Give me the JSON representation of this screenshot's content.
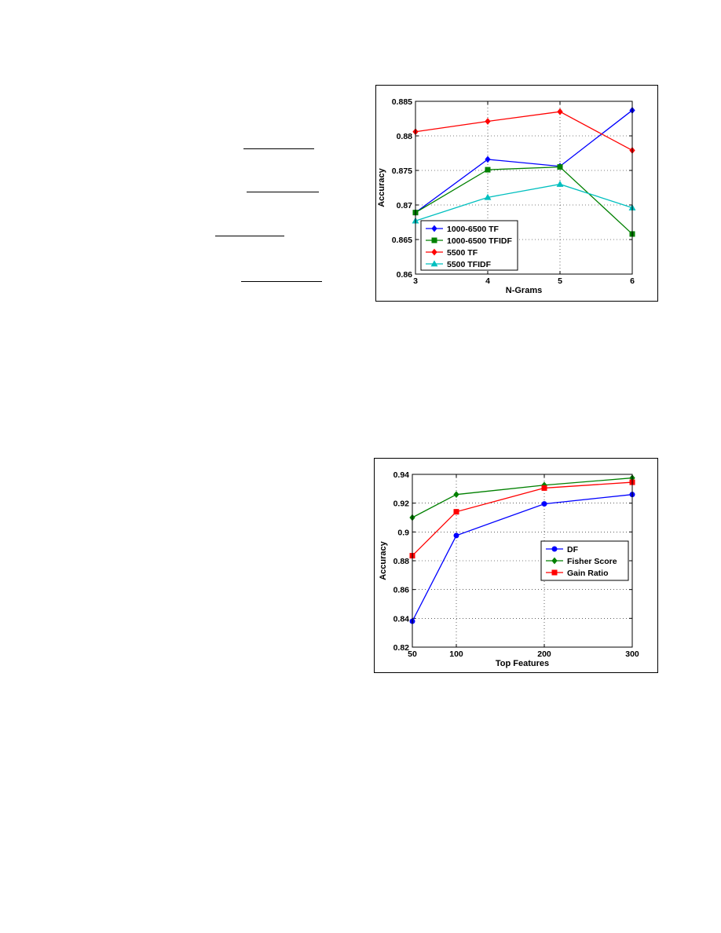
{
  "chart_data": [
    {
      "type": "line",
      "title": "",
      "xlabel": "N-Grams",
      "ylabel": "Accuracy",
      "x": [
        3,
        4,
        5,
        6
      ],
      "xticks": [
        "3",
        "4",
        "5",
        "6"
      ],
      "xlim": [
        3,
        6
      ],
      "ylim": [
        0.86,
        0.885
      ],
      "yticks": [
        "0.86",
        "0.865",
        "0.87",
        "0.875",
        "0.88",
        "0.885"
      ],
      "ytick_values": [
        0.86,
        0.865,
        0.87,
        0.875,
        0.88,
        0.885
      ],
      "grid": true,
      "legend_position": "bottom-left",
      "series": [
        {
          "name": "1000-6500 TF",
          "color": "#0000ff",
          "marker": "diamond",
          "values": [
            0.8689,
            0.8766,
            0.8756,
            0.8837
          ]
        },
        {
          "name": "1000-6500 TFIDF",
          "color": "#008000",
          "marker": "square",
          "values": [
            0.8689,
            0.8751,
            0.8755,
            0.8658
          ]
        },
        {
          "name": "5500 TF",
          "color": "#ff0000",
          "marker": "diamond",
          "values": [
            0.8806,
            0.8821,
            0.8835,
            0.8779
          ]
        },
        {
          "name": "5500 TFIDF",
          "color": "#00bfbf",
          "marker": "triangle",
          "values": [
            0.8677,
            0.8711,
            0.873,
            0.8696
          ]
        }
      ]
    },
    {
      "type": "line",
      "title": "",
      "xlabel": "Top Features",
      "ylabel": "Accuracy",
      "x": [
        50,
        100,
        200,
        300
      ],
      "xticks": [
        "50",
        "100",
        "200",
        "300"
      ],
      "xlim": [
        50,
        300
      ],
      "ylim": [
        0.82,
        0.94
      ],
      "yticks": [
        "0.82",
        "0.84",
        "0.86",
        "0.88",
        "0.9",
        "0.92",
        "0.94"
      ],
      "ytick_values": [
        0.82,
        0.84,
        0.86,
        0.88,
        0.9,
        0.92,
        0.94
      ],
      "grid": true,
      "legend_position": "middle-right",
      "series": [
        {
          "name": "DF",
          "color": "#0000ff",
          "marker": "circle",
          "values": [
            0.838,
            0.8975,
            0.9195,
            0.926
          ]
        },
        {
          "name": "Fisher Score",
          "color": "#008000",
          "marker": "diamond",
          "values": [
            0.91,
            0.926,
            0.9325,
            0.9375
          ]
        },
        {
          "name": "Gain Ratio",
          "color": "#ff0000",
          "marker": "square",
          "values": [
            0.8835,
            0.914,
            0.9305,
            0.9345
          ]
        }
      ]
    }
  ]
}
